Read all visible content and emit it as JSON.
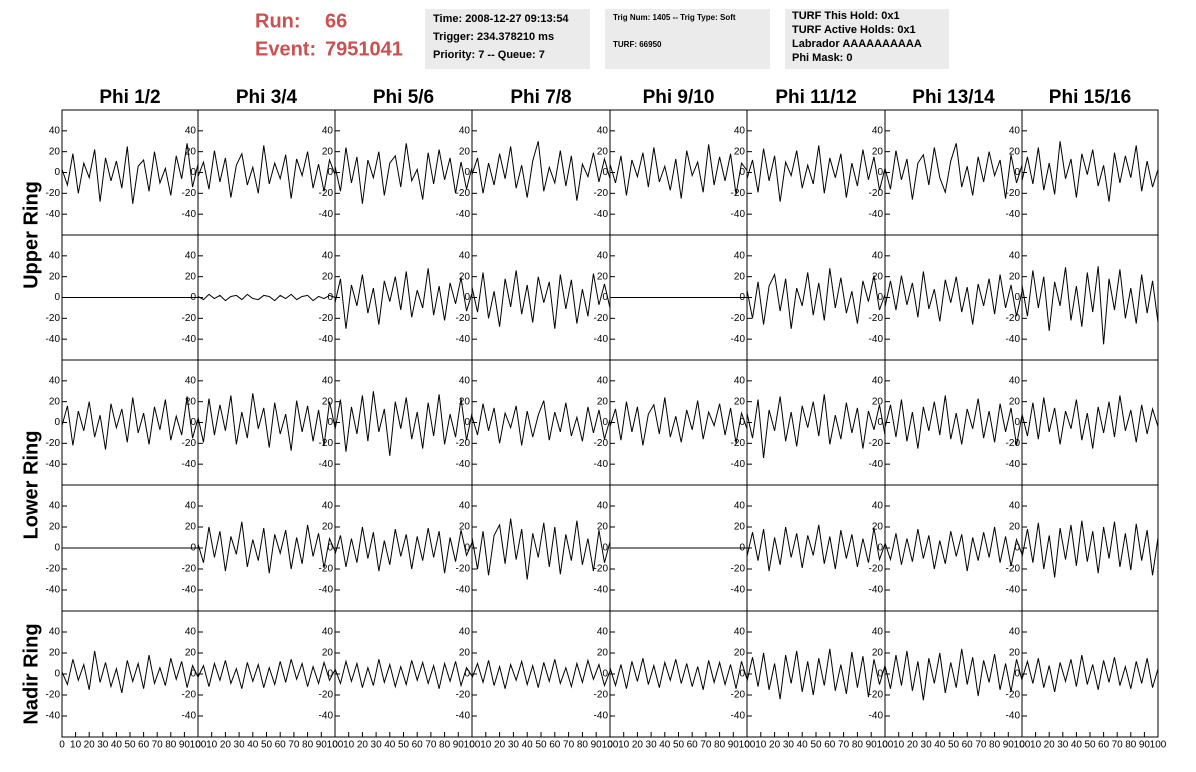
{
  "header": {
    "run_label": "Run:",
    "run": "66",
    "event_label": "Event:",
    "event": "7951041"
  },
  "info_boxes": [
    [
      "Time: 2008-12-27 09:13:54",
      "Trigger: 234.378210 ms",
      "Priority: 7 -- Queue: 7"
    ],
    [
      "Trig Num: 1405 -- Trig Type: Soft",
      "TURF: 66950"
    ],
    [
      "TURF This Hold: 0x1",
      "TURF Active Holds: 0x1",
      "Labrador AAAAAAAAAA",
      "Phi Mask: 0"
    ]
  ],
  "chart_data": {
    "type": "line",
    "columns": [
      "Phi 1/2",
      "Phi 3/4",
      "Phi 5/6",
      "Phi 7/8",
      "Phi 9/10",
      "Phi 11/12",
      "Phi 13/14",
      "Phi 15/16"
    ],
    "rings": [
      "Upper Ring",
      "Lower Ring",
      "Nadir Ring"
    ],
    "color": "#000000",
    "xlim": [
      0,
      100
    ],
    "xticks": [
      0,
      10,
      20,
      30,
      40,
      50,
      60,
      70,
      80,
      90,
      100
    ],
    "ylim": [
      -60,
      60
    ],
    "yticks": [
      -40,
      -20,
      0,
      20,
      40
    ],
    "x": [
      0,
      4,
      8,
      12,
      16,
      20,
      24,
      28,
      32,
      36,
      40,
      44,
      48,
      52,
      56,
      60,
      64,
      68,
      72,
      76,
      80,
      84,
      88,
      92,
      96,
      100
    ],
    "panels": [
      [
        [
          3,
          -12,
          18,
          -20,
          9,
          -5,
          22,
          -28,
          14,
          -8,
          11,
          -15,
          25,
          -30,
          6,
          12,
          -18,
          20,
          -10,
          4,
          -22,
          16,
          -6,
          28,
          -14,
          8
        ],
        [
          -4,
          10,
          -16,
          21,
          -9,
          14,
          -24,
          7,
          18,
          -12,
          5,
          -20,
          26,
          -11,
          9,
          -6,
          17,
          -25,
          13,
          -3,
          20,
          -15,
          8,
          -18,
          12,
          -2
        ],
        [
          6,
          -18,
          24,
          -10,
          15,
          -30,
          12,
          -5,
          20,
          -22,
          9,
          16,
          -14,
          28,
          -8,
          3,
          -26,
          19,
          -11,
          22,
          -7,
          14,
          -20,
          10,
          -16,
          5
        ],
        [
          -2,
          14,
          -20,
          9,
          -12,
          18,
          -6,
          25,
          -15,
          7,
          -24,
          11,
          30,
          -18,
          5,
          -10,
          21,
          -13,
          16,
          -27,
          8,
          -4,
          19,
          -9,
          13,
          -6
        ],
        [
          8,
          -10,
          16,
          -22,
          12,
          -4,
          19,
          -14,
          24,
          -9,
          6,
          -17,
          13,
          -25,
          21,
          -3,
          10,
          -19,
          27,
          -12,
          15,
          -8,
          18,
          -21,
          9,
          2
        ],
        [
          -6,
          12,
          -19,
          23,
          -8,
          16,
          -28,
          10,
          -3,
          21,
          -15,
          7,
          -11,
          26,
          -20,
          14,
          -5,
          18,
          -24,
          9,
          -13,
          22,
          -7,
          15,
          -17,
          4
        ],
        [
          4,
          -16,
          21,
          -7,
          13,
          -26,
          9,
          17,
          -12,
          24,
          -5,
          -19,
          11,
          28,
          -14,
          6,
          -22,
          15,
          -9,
          20,
          -3,
          12,
          -25,
          17,
          -10,
          7
        ],
        [
          -8,
          15,
          -11,
          24,
          -17,
          9,
          -21,
          30,
          -6,
          13,
          -24,
          18,
          -2,
          22,
          -13,
          7,
          -28,
          19,
          -10,
          16,
          -5,
          26,
          -18,
          11,
          -14,
          3
        ]
      ],
      [
        [
          0,
          0,
          0,
          0,
          0,
          0,
          0,
          0,
          0,
          0,
          0,
          0,
          0,
          0,
          0,
          0,
          0,
          0,
          0,
          0,
          0,
          0,
          0,
          0,
          0,
          0
        ],
        [
          1,
          -2,
          3,
          -1,
          2,
          -3,
          1,
          2,
          -2,
          3,
          -1,
          -2,
          2,
          1,
          -3,
          2,
          -1,
          3,
          -2,
          1,
          2,
          -3,
          1,
          -1,
          2,
          0
        ],
        [
          -5,
          18,
          -30,
          12,
          -8,
          22,
          -15,
          9,
          -26,
          16,
          -4,
          20,
          -12,
          25,
          -19,
          7,
          -10,
          28,
          -17,
          11,
          -22,
          14,
          -6,
          19,
          -13,
          4
        ],
        [
          10,
          -14,
          24,
          -20,
          6,
          -28,
          18,
          -9,
          26,
          -16,
          12,
          -24,
          20,
          -5,
          15,
          -30,
          22,
          -11,
          17,
          -25,
          8,
          -18,
          23,
          -7,
          13,
          -10
        ],
        [
          0,
          0,
          0,
          0,
          0,
          0,
          0,
          0,
          0,
          0,
          0,
          0,
          0,
          0,
          0,
          0,
          0,
          0,
          0,
          0,
          0,
          0,
          0,
          0,
          0,
          0
        ],
        [
          7,
          -20,
          15,
          -26,
          11,
          22,
          -13,
          18,
          -30,
          9,
          -8,
          24,
          -17,
          14,
          -22,
          28,
          -10,
          19,
          -15,
          6,
          -25,
          16,
          -4,
          21,
          -12,
          3
        ],
        [
          -9,
          16,
          -12,
          21,
          -7,
          14,
          -19,
          25,
          -11,
          8,
          -23,
          17,
          -5,
          20,
          -14,
          10,
          -26,
          13,
          -8,
          18,
          -16,
          22,
          -10,
          12,
          -18,
          6
        ],
        [
          12,
          -18,
          26,
          -10,
          20,
          -32,
          15,
          -8,
          29,
          -22,
          11,
          -28,
          24,
          -14,
          30,
          -45,
          18,
          -12,
          27,
          -20,
          9,
          -25,
          22,
          -15,
          16,
          -24
        ]
      ],
      [
        [
          -3,
          16,
          -22,
          11,
          -8,
          20,
          -14,
          7,
          -26,
          18,
          -5,
          13,
          -19,
          24,
          -10,
          9,
          -21,
          15,
          -7,
          22,
          -17,
          6,
          -12,
          25,
          -15,
          4
        ],
        [
          5,
          -19,
          23,
          -12,
          17,
          -8,
          26,
          -21,
          10,
          -15,
          28,
          -6,
          14,
          -24,
          19,
          -11,
          8,
          -27,
          21,
          -9,
          16,
          -18,
          12,
          -22,
          20,
          -5
        ],
        [
          -7,
          22,
          -28,
          15,
          -11,
          26,
          -18,
          30,
          -9,
          13,
          -32,
          20,
          -6,
          24,
          -16,
          10,
          -25,
          19,
          -13,
          27,
          -21,
          8,
          -14,
          23,
          -17,
          9
        ],
        [
          6,
          -12,
          18,
          -8,
          14,
          -20,
          9,
          -5,
          16,
          -22,
          11,
          -14,
          7,
          21,
          -17,
          10,
          -9,
          19,
          -13,
          5,
          -18,
          15,
          -10,
          12,
          -16,
          3
        ],
        [
          -4,
          13,
          -17,
          20,
          -9,
          15,
          -22,
          8,
          17,
          -11,
          24,
          -14,
          6,
          -19,
          12,
          -7,
          21,
          -16,
          10,
          -3,
          18,
          -12,
          14,
          -20,
          9,
          -6
        ],
        [
          9,
          -15,
          22,
          -34,
          12,
          -8,
          25,
          -18,
          10,
          -23,
          16,
          -5,
          20,
          -13,
          27,
          -21,
          7,
          -16,
          19,
          -10,
          14,
          -25,
          11,
          -7,
          17,
          -12
        ],
        [
          -5,
          17,
          -14,
          22,
          -18,
          10,
          -25,
          15,
          -8,
          20,
          -12,
          26,
          -16,
          9,
          -21,
          13,
          -6,
          23,
          -15,
          11,
          -19,
          18,
          -9,
          14,
          -22,
          7
        ],
        [
          8,
          -13,
          19,
          -16,
          24,
          -9,
          14,
          -21,
          11,
          -6,
          22,
          -17,
          9,
          -25,
          15,
          -10,
          20,
          -14,
          26,
          -8,
          12,
          -19,
          17,
          -11,
          13,
          -4
        ]
      ],
      [
        [
          0,
          0,
          0,
          0,
          0,
          0,
          0,
          0,
          0,
          0,
          0,
          0,
          0,
          0,
          0,
          0,
          0,
          0,
          0,
          0,
          0,
          0,
          0,
          0,
          0,
          0
        ],
        [
          4,
          -14,
          20,
          -9,
          16,
          -22,
          11,
          -6,
          25,
          -18,
          8,
          -12,
          19,
          -24,
          13,
          -5,
          17,
          -20,
          10,
          -15,
          22,
          -8,
          14,
          -19,
          9,
          -3
        ],
        [
          -6,
          12,
          -18,
          9,
          -14,
          20,
          -10,
          15,
          -22,
          7,
          -16,
          18,
          -8,
          13,
          -20,
          11,
          -12,
          19,
          -9,
          16,
          -24,
          10,
          -13,
          17,
          -7,
          5
        ],
        [
          10,
          -20,
          16,
          -26,
          12,
          22,
          -15,
          28,
          -11,
          18,
          -30,
          14,
          -9,
          24,
          -18,
          20,
          -25,
          13,
          -12,
          26,
          -16,
          9,
          -22,
          17,
          -14,
          6
        ],
        [
          0,
          0,
          0,
          0,
          0,
          0,
          0,
          0,
          0,
          0,
          0,
          0,
          0,
          0,
          0,
          0,
          0,
          0,
          0,
          0,
          0,
          0,
          0,
          0,
          0,
          0
        ],
        [
          -8,
          15,
          -12,
          18,
          -22,
          10,
          -16,
          20,
          -9,
          14,
          -19,
          12,
          -7,
          22,
          -15,
          11,
          -20,
          17,
          -10,
          13,
          -18,
          9,
          -14,
          19,
          -11,
          4
        ],
        [
          5,
          -11,
          14,
          -16,
          9,
          -13,
          18,
          -10,
          12,
          -20,
          7,
          -15,
          16,
          -8,
          13,
          -22,
          10,
          -12,
          15,
          -9,
          20,
          -14,
          11,
          -17,
          8,
          -6
        ],
        [
          -9,
          18,
          -14,
          24,
          -20,
          12,
          -28,
          19,
          -11,
          22,
          -17,
          26,
          -13,
          16,
          -24,
          20,
          -10,
          25,
          -18,
          14,
          -21,
          23,
          -12,
          17,
          -26,
          10
        ]
      ],
      [
        [
          2,
          -10,
          14,
          -6,
          9,
          -15,
          22,
          -8,
          11,
          -12,
          5,
          -18,
          13,
          -7,
          10,
          -14,
          18,
          -9,
          6,
          -11,
          15,
          -5,
          12,
          -13,
          8,
          -3
        ],
        [
          -3,
          8,
          -12,
          10,
          -6,
          13,
          -9,
          5,
          -14,
          11,
          -7,
          9,
          -13,
          6,
          -10,
          12,
          -8,
          14,
          -5,
          10,
          -12,
          7,
          -9,
          11,
          -6,
          4
        ],
        [
          5,
          -9,
          12,
          -7,
          10,
          -13,
          6,
          -11,
          14,
          -8,
          9,
          -12,
          7,
          -10,
          13,
          -6,
          11,
          -9,
          8,
          -14,
          10,
          -7,
          12,
          -11,
          6,
          -2
        ],
        [
          -4,
          10,
          -8,
          13,
          -11,
          7,
          -14,
          9,
          -6,
          12,
          -10,
          8,
          -13,
          11,
          -7,
          14,
          -9,
          6,
          -12,
          10,
          -8,
          13,
          -5,
          9,
          -11,
          3
        ],
        [
          6,
          -11,
          9,
          -14,
          12,
          -7,
          15,
          -10,
          8,
          -13,
          11,
          -6,
          14,
          -9,
          10,
          -12,
          7,
          -15,
          13,
          -8,
          11,
          -10,
          9,
          -14,
          12,
          -5
        ],
        [
          -7,
          16,
          -12,
          20,
          -15,
          10,
          -24,
          18,
          -9,
          22,
          -17,
          12,
          -20,
          15,
          -11,
          24,
          -16,
          9,
          -19,
          21,
          -13,
          17,
          -22,
          14,
          -10,
          8
        ],
        [
          8,
          -14,
          18,
          -11,
          22,
          -16,
          12,
          -25,
          15,
          -9,
          20,
          -18,
          11,
          -13,
          24,
          -10,
          16,
          -21,
          13,
          -8,
          19,
          -15,
          10,
          -17,
          14,
          -6
        ],
        [
          -5,
          12,
          -9,
          15,
          -13,
          8,
          -17,
          11,
          -7,
          14,
          -12,
          18,
          -10,
          9,
          -15,
          13,
          -8,
          16,
          -11,
          7,
          -14,
          12,
          -9,
          15,
          -13,
          5
        ]
      ]
    ]
  }
}
